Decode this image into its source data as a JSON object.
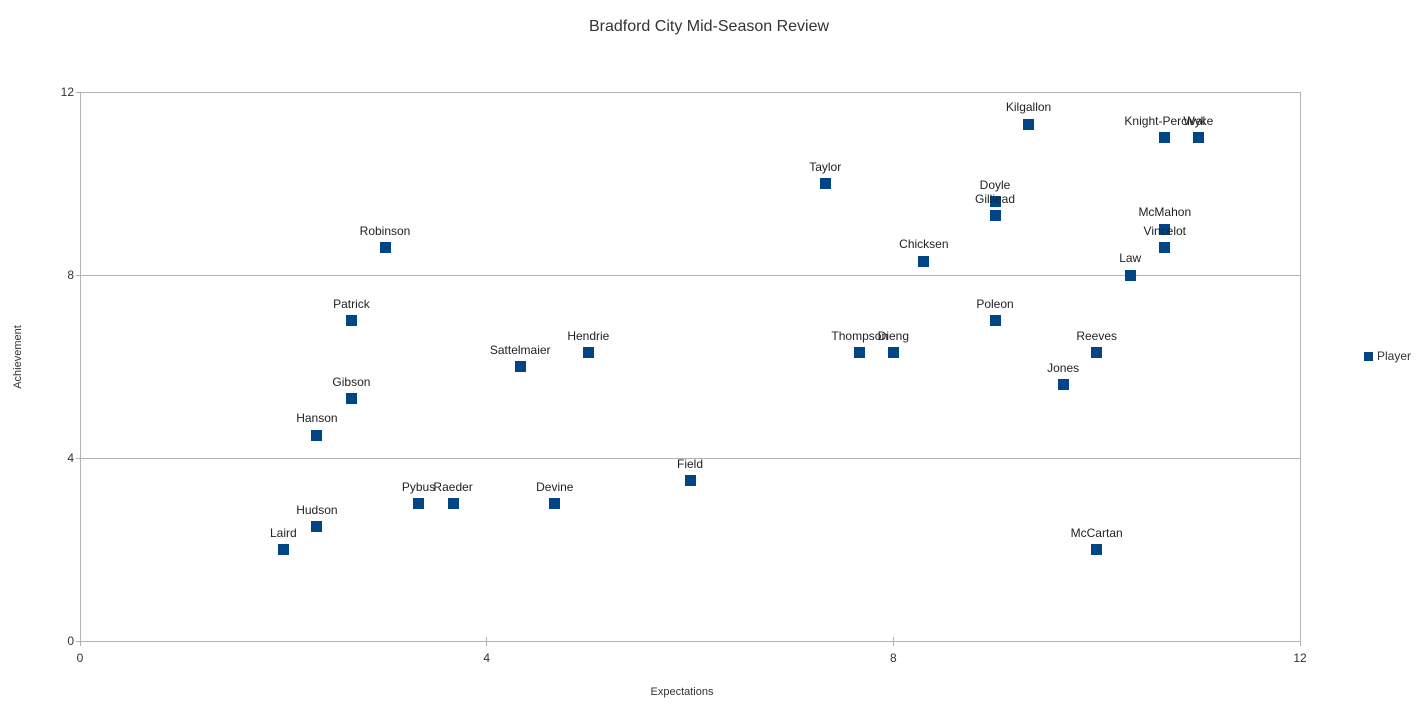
{
  "chart_data": {
    "type": "scatter",
    "title": "Bradford City Mid-Season Review",
    "xlabel": "Expectations",
    "ylabel": "Achievement",
    "xlim": [
      0,
      12
    ],
    "ylim": [
      0,
      12
    ],
    "xticks": [
      0,
      4,
      8,
      12
    ],
    "yticks": [
      0,
      4,
      8,
      12
    ],
    "grid": "horizontal-gridlines-with-plot-border",
    "legend": {
      "position": "right",
      "entries": [
        "Player"
      ]
    },
    "colors": {
      "marker": "#004586",
      "grid": "#b3b3b3",
      "text": "#333333"
    },
    "series": [
      {
        "name": "Player",
        "marker": "square",
        "color": "#004586",
        "points": [
          {
            "label": "Laird",
            "x": 2.0,
            "y": 2.0
          },
          {
            "label": "Hudson",
            "x": 2.33,
            "y": 2.5
          },
          {
            "label": "Hanson",
            "x": 2.33,
            "y": 4.5
          },
          {
            "label": "Gibson",
            "x": 2.67,
            "y": 5.3
          },
          {
            "label": "Patrick",
            "x": 2.67,
            "y": 7.0
          },
          {
            "label": "Robinson",
            "x": 3.0,
            "y": 8.6
          },
          {
            "label": "Pybus",
            "x": 3.33,
            "y": 3.0
          },
          {
            "label": "Raeder",
            "x": 3.67,
            "y": 3.0
          },
          {
            "label": "Devine",
            "x": 4.67,
            "y": 3.0
          },
          {
            "label": "Sattelmaier",
            "x": 4.33,
            "y": 6.0
          },
          {
            "label": "Hendrie",
            "x": 5.0,
            "y": 6.3
          },
          {
            "label": "Field",
            "x": 6.0,
            "y": 3.5
          },
          {
            "label": "Taylor",
            "x": 7.33,
            "y": 10.0
          },
          {
            "label": "Thompson",
            "x": 7.67,
            "y": 6.3
          },
          {
            "label": "Dieng",
            "x": 8.0,
            "y": 6.3
          },
          {
            "label": "Chicksen",
            "x": 8.3,
            "y": 8.3
          },
          {
            "label": "Poleon",
            "x": 9.0,
            "y": 7.0
          },
          {
            "label": "Doyle",
            "x": 9.0,
            "y": 9.6
          },
          {
            "label": "Gilliead",
            "x": 9.0,
            "y": 9.3
          },
          {
            "label": "Kilgallon",
            "x": 9.33,
            "y": 11.3
          },
          {
            "label": "Jones",
            "x": 9.67,
            "y": 5.6
          },
          {
            "label": "Reeves",
            "x": 10.0,
            "y": 6.3
          },
          {
            "label": "McCartan",
            "x": 10.0,
            "y": 2.0
          },
          {
            "label": "Law",
            "x": 10.33,
            "y": 8.0
          },
          {
            "label": "Vincelot",
            "x": 10.67,
            "y": 8.6
          },
          {
            "label": "McMahon",
            "x": 10.67,
            "y": 9.0
          },
          {
            "label": "Knight-Percival",
            "x": 10.67,
            "y": 11.0
          },
          {
            "label": "Wyke",
            "x": 11.0,
            "y": 11.0
          }
        ]
      }
    ]
  }
}
